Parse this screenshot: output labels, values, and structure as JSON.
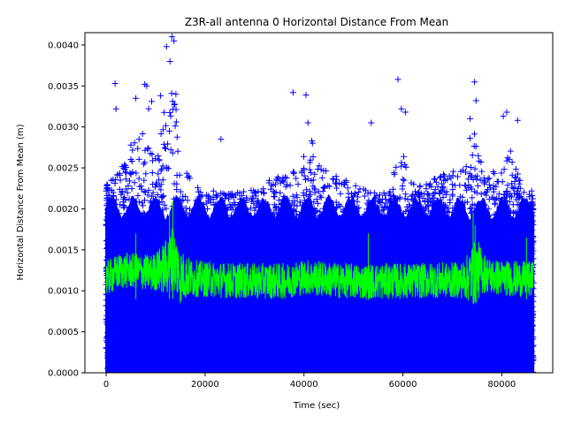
{
  "chart_data": {
    "type": "scatter",
    "title": "Z3R-all antenna 0 Horizontal Distance From Mean",
    "xlabel": "Time (sec)",
    "ylabel": "Horizontal Distance From Mean (m)",
    "xlim": [
      -4300,
      90300
    ],
    "ylim": [
      0,
      0.00415
    ],
    "xticks": [
      0,
      20000,
      40000,
      60000,
      80000
    ],
    "xtick_labels": [
      "0",
      "20000",
      "40000",
      "60000",
      "80000"
    ],
    "yticks": [
      0,
      0.0005,
      0.001,
      0.0015,
      0.002,
      0.0025,
      0.003,
      0.0035,
      0.004
    ],
    "ytick_labels": [
      "0.0000",
      "0.0005",
      "0.0010",
      "0.0015",
      "0.0020",
      "0.0025",
      "0.0030",
      "0.0035",
      "0.0040"
    ],
    "grid": false,
    "series": [
      {
        "name": "horizontal-distance-samples",
        "marker": "+",
        "color": "#0000ff",
        "x_range": [
          0,
          86400
        ],
        "dense_band": [
          0,
          0.002
        ],
        "outliers": [
          {
            "x": 1800,
            "y": 0.00353
          },
          {
            "x": 2000,
            "y": 0.00322
          },
          {
            "x": 6000,
            "y": 0.00335
          },
          {
            "x": 7800,
            "y": 0.00352
          },
          {
            "x": 8200,
            "y": 0.0035
          },
          {
            "x": 8600,
            "y": 0.00322
          },
          {
            "x": 9200,
            "y": 0.00331
          },
          {
            "x": 11000,
            "y": 0.00338
          },
          {
            "x": 12200,
            "y": 0.00398
          },
          {
            "x": 12900,
            "y": 0.0038
          },
          {
            "x": 13300,
            "y": 0.0041
          },
          {
            "x": 13700,
            "y": 0.00405
          },
          {
            "x": 14100,
            "y": 0.0034
          },
          {
            "x": 23200,
            "y": 0.00285
          },
          {
            "x": 37800,
            "y": 0.00342
          },
          {
            "x": 40400,
            "y": 0.00339
          },
          {
            "x": 40800,
            "y": 0.00305
          },
          {
            "x": 53600,
            "y": 0.00305
          },
          {
            "x": 59000,
            "y": 0.00358
          },
          {
            "x": 59700,
            "y": 0.00322
          },
          {
            "x": 60500,
            "y": 0.00318
          },
          {
            "x": 74500,
            "y": 0.00355
          },
          {
            "x": 74800,
            "y": 0.00332
          },
          {
            "x": 73600,
            "y": 0.0031
          },
          {
            "x": 80300,
            "y": 0.00313
          },
          {
            "x": 81000,
            "y": 0.00318
          },
          {
            "x": 83200,
            "y": 0.00308
          }
        ]
      },
      {
        "name": "running-mean",
        "marker": "line",
        "color": "#00ff00",
        "x": [
          0,
          3000,
          6000,
          9000,
          12000,
          13500,
          15000,
          18000,
          24000,
          30000,
          36000,
          40000,
          46000,
          52000,
          58000,
          62000,
          66000,
          70000,
          72000,
          74000,
          75500,
          78000,
          82000,
          86400
        ],
        "y": [
          0.00115,
          0.00125,
          0.00124,
          0.00122,
          0.00128,
          0.00142,
          0.00118,
          0.00115,
          0.00113,
          0.00112,
          0.00112,
          0.00117,
          0.00113,
          0.00111,
          0.00112,
          0.00112,
          0.00113,
          0.00113,
          0.00113,
          0.0012,
          0.00125,
          0.00117,
          0.00115,
          0.00114
        ]
      }
    ]
  }
}
